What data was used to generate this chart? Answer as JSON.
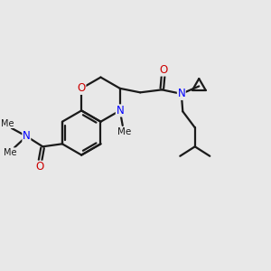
{
  "background_color": "#e8e8e8",
  "bond_color": "#1a1a1a",
  "nitrogen_color": "#0000ff",
  "oxygen_color": "#cc0000",
  "bond_width": 1.6,
  "font_size": 8.5,
  "fig_width": 3.0,
  "fig_height": 3.0,
  "dpi": 100,
  "xlim": [
    0,
    10
  ],
  "ylim": [
    0,
    10
  ]
}
